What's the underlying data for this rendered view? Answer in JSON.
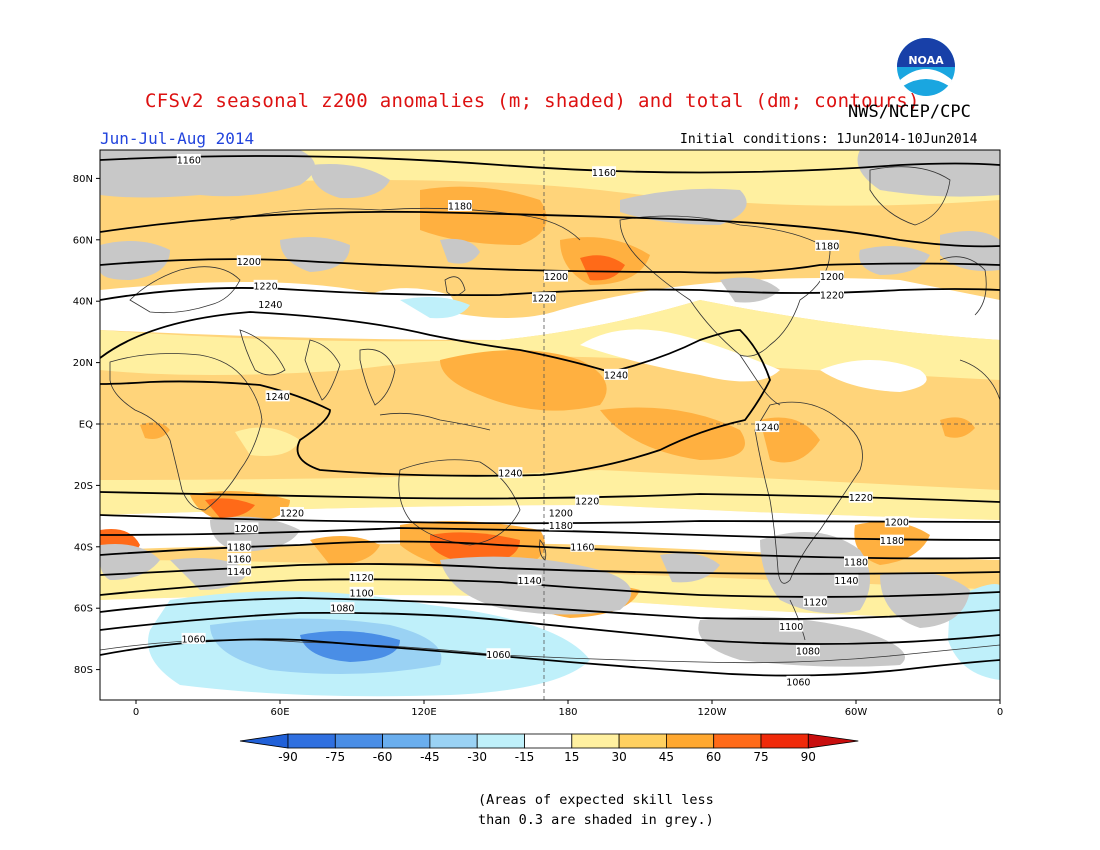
{
  "header": {
    "title": "CFSv2 seasonal z200 anomalies (m; shaded) and total (dm; contours)",
    "agency": "NWS/NCEP/CPC",
    "season": "Jun-Jul-Aug 2014",
    "initial_conditions": "Initial conditions: 1Jun2014-10Jun2014",
    "logo_text": "NOAA"
  },
  "colors": {
    "title": "#dd1111",
    "season": "#2244dd",
    "grey_skill": "#c8c8c8",
    "contour": "#000000"
  },
  "map": {
    "lat_labels": [
      "80N",
      "60N",
      "40N",
      "20N",
      "EQ",
      "20S",
      "40S",
      "60S",
      "80S"
    ],
    "lon_labels": [
      "0",
      "60E",
      "120E",
      "180",
      "120W",
      "60W",
      "0"
    ],
    "contour_labels": [
      {
        "text": "1160",
        "lat": 86,
        "lon": 22
      },
      {
        "text": "1160",
        "lat": 82,
        "lon": 195
      },
      {
        "text": "1180",
        "lat": 71,
        "lon": 135
      },
      {
        "text": "1180",
        "lat": 58,
        "lon": 288
      },
      {
        "text": "1200",
        "lat": 53,
        "lon": 47
      },
      {
        "text": "1200",
        "lat": 48,
        "lon": 175
      },
      {
        "text": "1200",
        "lat": 48,
        "lon": 290
      },
      {
        "text": "1220",
        "lat": 45,
        "lon": 54
      },
      {
        "text": "1220",
        "lat": 41,
        "lon": 170
      },
      {
        "text": "1220",
        "lat": 42,
        "lon": 290
      },
      {
        "text": "1240",
        "lat": 39,
        "lon": 56
      },
      {
        "text": "1240",
        "lat": 16,
        "lon": 200
      },
      {
        "text": "1240",
        "lat": 9,
        "lon": 59
      },
      {
        "text": "1240",
        "lat": -1,
        "lon": 263
      },
      {
        "text": "1240",
        "lat": -16,
        "lon": 156
      },
      {
        "text": "1220",
        "lat": -25,
        "lon": 188
      },
      {
        "text": "1220",
        "lat": -24,
        "lon": 302
      },
      {
        "text": "1220",
        "lat": -29,
        "lon": 65
      },
      {
        "text": "1200",
        "lat": -29,
        "lon": 177
      },
      {
        "text": "1200",
        "lat": -32,
        "lon": 317
      },
      {
        "text": "1200",
        "lat": -34,
        "lon": 46
      },
      {
        "text": "1180",
        "lat": -33,
        "lon": 177
      },
      {
        "text": "1180",
        "lat": -38,
        "lon": 315
      },
      {
        "text": "1180",
        "lat": -40,
        "lon": 43
      },
      {
        "text": "1180",
        "lat": -45,
        "lon": 300
      },
      {
        "text": "1160",
        "lat": -40,
        "lon": 186
      },
      {
        "text": "1160",
        "lat": -44,
        "lon": 43
      },
      {
        "text": "1140",
        "lat": -48,
        "lon": 43
      },
      {
        "text": "1140",
        "lat": -51,
        "lon": 164
      },
      {
        "text": "1140",
        "lat": -51,
        "lon": 296
      },
      {
        "text": "1120",
        "lat": -50,
        "lon": 94
      },
      {
        "text": "1120",
        "lat": -58,
        "lon": 283
      },
      {
        "text": "1100",
        "lat": -55,
        "lon": 94
      },
      {
        "text": "1100",
        "lat": -66,
        "lon": 273
      },
      {
        "text": "1080",
        "lat": -60,
        "lon": 86
      },
      {
        "text": "1080",
        "lat": -74,
        "lon": 280
      },
      {
        "text": "1060",
        "lat": -70,
        "lon": 24
      },
      {
        "text": "1060",
        "lat": -75,
        "lon": 151
      },
      {
        "text": "1060",
        "lat": -84,
        "lon": 276
      }
    ]
  },
  "colorbar": {
    "ticks": [
      "-90",
      "-75",
      "-60",
      "-45",
      "-30",
      "-15",
      "15",
      "30",
      "45",
      "60",
      "75",
      "90"
    ],
    "colors": [
      "#2060d8",
      "#3070e0",
      "#4a8ee6",
      "#6aaeee",
      "#9ad2f4",
      "#bff0fa",
      "#ffffff",
      "#fff0a0",
      "#ffd060",
      "#ffa830",
      "#ff6a18",
      "#f02a0a",
      "#c80e0e"
    ]
  },
  "note": {
    "line1": "(Areas of expected skill less",
    "line2": "than 0.3 are shaded in grey.)"
  }
}
